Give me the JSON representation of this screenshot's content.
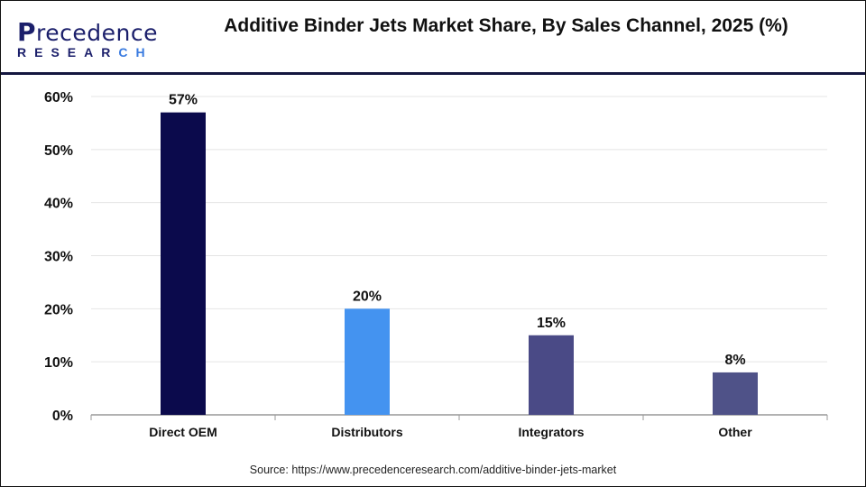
{
  "logo": {
    "line1": "Precedence",
    "line2": "RESEARCH"
  },
  "title": "Additive Binder Jets Market Share, By Sales Channel, 2025 (%)",
  "source": "Source: https://www.precedenceresearch.com/additive-binder-jets-market",
  "chart_data": {
    "type": "bar",
    "title": "Additive Binder Jets Market Share, By Sales Channel, 2025 (%)",
    "categories": [
      "Direct OEM",
      "Distributors",
      "Integrators",
      "Other"
    ],
    "values": [
      57,
      20,
      15,
      8
    ],
    "data_labels": [
      "57%",
      "20%",
      "15%",
      "8%"
    ],
    "colors": [
      "#0b0a4c",
      "#4493f0",
      "#4a4a86",
      "#4f5288"
    ],
    "ylim": [
      0,
      60
    ],
    "yticks": [
      0,
      10,
      20,
      30,
      40,
      50,
      60
    ],
    "ytick_labels": [
      "0%",
      "10%",
      "20%",
      "30%",
      "40%",
      "50%",
      "60%"
    ],
    "grid": true,
    "xlabel": "",
    "ylabel": ""
  }
}
